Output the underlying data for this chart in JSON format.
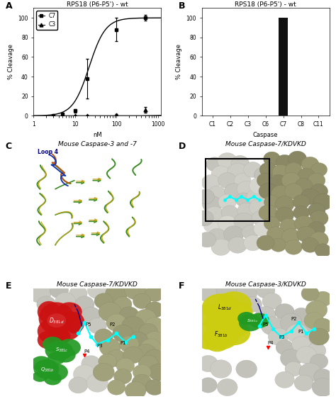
{
  "panel_A": {
    "title": "RPS18 (P6-P5') - wt",
    "xlabel": "nM",
    "ylabel": "% Cleavage",
    "C7_x": [
      3,
      5,
      10,
      20,
      100,
      500
    ],
    "C7_y": [
      0,
      2,
      5,
      38,
      88,
      100
    ],
    "C7_err": [
      0.5,
      1,
      2,
      20,
      12,
      3
    ],
    "C3_x": [
      3,
      5,
      10,
      20,
      100,
      500
    ],
    "C3_y": [
      0,
      0,
      0,
      0,
      1,
      6
    ],
    "C3_err": [
      0.2,
      0.3,
      0.2,
      0.3,
      0.5,
      3
    ],
    "ylim": [
      0,
      110
    ],
    "panel_label": "A"
  },
  "panel_B": {
    "title": "RPS18 (P6-P5') - wt",
    "xlabel": "Caspase",
    "ylabel": "% Cleavage",
    "categories": [
      "C1",
      "C2",
      "C3",
      "C6",
      "C7",
      "C8",
      "C11"
    ],
    "values": [
      0,
      0,
      0,
      0,
      100,
      0,
      0
    ],
    "ylim": [
      0,
      110
    ],
    "panel_label": "B"
  },
  "panel_C": {
    "title": "Mouse Caspase-3 and -7",
    "annotation": "Loop 4",
    "panel_label": "C",
    "green": "#3a8c20",
    "yellow": "#c8a010",
    "blue": "#1030b0",
    "orange": "#c05010"
  },
  "panel_D": {
    "title": "Mouse Caspase-7/KDVKD",
    "panel_label": "D",
    "light_gray": "#d8d8d0",
    "dark_olive": "#9a9870"
  },
  "panel_E": {
    "title": "Mouse Caspase-7/KDVKD",
    "panel_label": "E",
    "red_color": "#cc1111",
    "green_color": "#229922",
    "surface_light": "#d0d0c8",
    "surface_dark": "#a8a880"
  },
  "panel_F": {
    "title": "Mouse Caspase-3/KDVKD",
    "panel_label": "F",
    "yellow_color": "#cccc10",
    "green_color": "#229922",
    "surface_light": "#d0d0c8",
    "surface_dark": "#a8a880"
  },
  "line_color": "#000000",
  "bar_color": "#111111",
  "background": "#ffffff"
}
